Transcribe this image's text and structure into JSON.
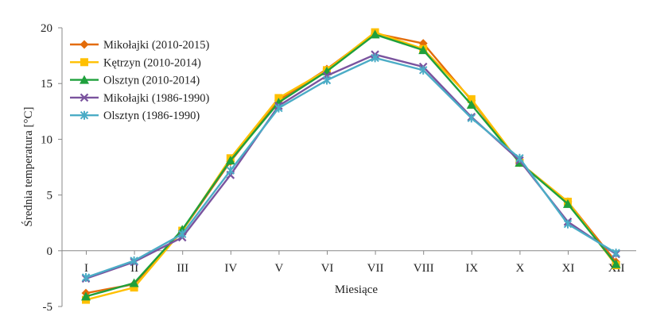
{
  "chart_data": {
    "type": "line",
    "xlabel": "Miesiące",
    "ylabel": "Średnia temperatura [°C]",
    "ylim": [
      -5,
      20
    ],
    "yticks": [
      -5,
      0,
      5,
      10,
      15,
      20
    ],
    "grid": false,
    "legend_position": "top-left",
    "categories": [
      "I",
      "II",
      "III",
      "IV",
      "V",
      "VI",
      "VII",
      "VIII",
      "IX",
      "X",
      "XI",
      "XII"
    ],
    "series": [
      {
        "name": "Mikołajki (2010-2015)",
        "color": "#E36C0A",
        "marker": "diamond",
        "values": [
          -3.8,
          -3.0,
          1.8,
          8.0,
          13.5,
          16.3,
          19.5,
          18.6,
          13.5,
          7.9,
          4.4,
          -1.0
        ]
      },
      {
        "name": "Kętrzyn (2010-2014)",
        "color": "#FFC000",
        "marker": "square",
        "values": [
          -4.4,
          -3.3,
          1.8,
          8.3,
          13.7,
          16.2,
          19.6,
          18.1,
          13.6,
          7.9,
          4.4,
          -1.3
        ]
      },
      {
        "name": "Olsztyn (2010-2014)",
        "color": "#1FA03C",
        "marker": "triangle",
        "values": [
          -4.1,
          -2.9,
          1.9,
          8.1,
          13.3,
          16.1,
          19.4,
          18.0,
          13.1,
          7.9,
          4.2,
          -1.2
        ]
      },
      {
        "name": "Mikołajki (1986-1990)",
        "color": "#7A539E",
        "marker": "x",
        "values": [
          -2.5,
          -1.0,
          1.2,
          6.8,
          13.0,
          15.7,
          17.6,
          16.5,
          12.0,
          8.1,
          2.6,
          -0.3
        ]
      },
      {
        "name": "Olsztyn (1986-1990)",
        "color": "#4BACC6",
        "marker": "star",
        "values": [
          -2.4,
          -0.9,
          1.5,
          7.2,
          12.8,
          15.3,
          17.3,
          16.2,
          11.9,
          8.3,
          2.4,
          -0.2
        ]
      }
    ]
  }
}
